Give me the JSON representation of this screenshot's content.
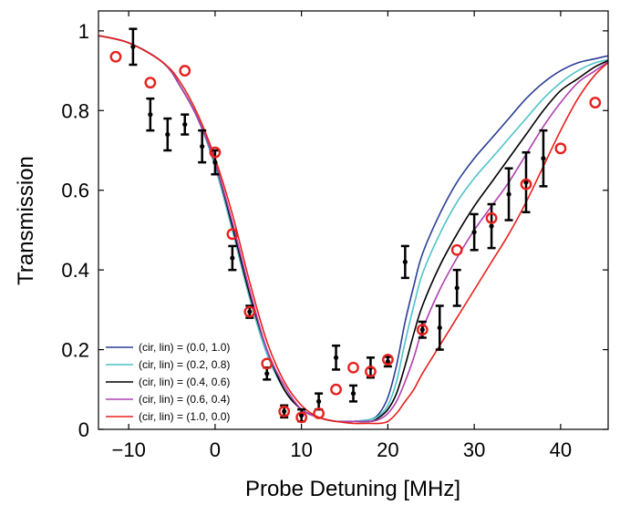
{
  "chart_data": {
    "type": "scatter",
    "title": "",
    "xlabel": "Probe Detuning [MHz]",
    "ylabel": "Transmission",
    "xlim": [
      -13.5,
      45.5
    ],
    "ylim": [
      0,
      1.05
    ],
    "xticks": [
      -10,
      0,
      10,
      20,
      30,
      40
    ],
    "xtick_labels": [
      "−10",
      "0",
      "10",
      "20",
      "30",
      "40"
    ],
    "yticks": [
      0,
      0.2,
      0.4,
      0.6,
      0.8,
      1
    ],
    "ytick_labels": [
      "0",
      "0.2",
      "0.4",
      "0.6",
      "0.8",
      "1"
    ],
    "grid": false,
    "legend_position": "bottom-left",
    "legend": [
      {
        "label": "(cir, lin) = (0.0, 1.0)",
        "color": "#2b3f94"
      },
      {
        "label": "(cir, lin) = (0.2, 0.8)",
        "color": "#4fc3c8"
      },
      {
        "label": "(cir, lin) = (0.4, 0.6)",
        "color": "#000000"
      },
      {
        "label": "(cir, lin) = (0.6, 0.4)",
        "color": "#b040b0"
      },
      {
        "label": "(cir, lin) = (1.0, 0.0)",
        "color": "#e8201c"
      }
    ],
    "series": [
      {
        "color": "#2b3f94",
        "x": [
          -14,
          -10,
          -6,
          -4,
          -2,
          0,
          2,
          4,
          6,
          8,
          10,
          12,
          14,
          16,
          18,
          19,
          20,
          21,
          22,
          23,
          24,
          26,
          28,
          30,
          32,
          34,
          36,
          38,
          40,
          42,
          44,
          46
        ],
        "y": [
          0.99,
          0.97,
          0.92,
          0.86,
          0.78,
          0.66,
          0.5,
          0.33,
          0.19,
          0.1,
          0.05,
          0.03,
          0.02,
          0.02,
          0.025,
          0.04,
          0.08,
          0.16,
          0.27,
          0.36,
          0.44,
          0.54,
          0.62,
          0.68,
          0.73,
          0.78,
          0.83,
          0.87,
          0.9,
          0.92,
          0.93,
          0.94
        ]
      },
      {
        "color": "#4fc3c8",
        "x": [
          -14,
          -10,
          -6,
          -4,
          -2,
          0,
          2,
          4,
          6,
          8,
          10,
          12,
          14,
          16,
          18,
          19,
          20,
          21,
          22,
          23,
          24,
          26,
          28,
          30,
          32,
          34,
          36,
          38,
          40,
          42,
          44,
          46
        ],
        "y": [
          0.99,
          0.97,
          0.92,
          0.86,
          0.78,
          0.66,
          0.5,
          0.33,
          0.19,
          0.1,
          0.05,
          0.03,
          0.02,
          0.02,
          0.025,
          0.035,
          0.06,
          0.12,
          0.22,
          0.31,
          0.39,
          0.49,
          0.57,
          0.63,
          0.68,
          0.73,
          0.78,
          0.83,
          0.87,
          0.9,
          0.92,
          0.93
        ]
      },
      {
        "color": "#000000",
        "x": [
          -14,
          -10,
          -6,
          -4,
          -2,
          0,
          2,
          4,
          6,
          8,
          10,
          12,
          14,
          16,
          18,
          19,
          20,
          21,
          22,
          23,
          24,
          26,
          28,
          30,
          32,
          34,
          36,
          38,
          40,
          42,
          44,
          46
        ],
        "y": [
          0.99,
          0.97,
          0.92,
          0.86,
          0.78,
          0.67,
          0.51,
          0.34,
          0.2,
          0.1,
          0.05,
          0.03,
          0.02,
          0.02,
          0.02,
          0.03,
          0.05,
          0.09,
          0.16,
          0.24,
          0.31,
          0.41,
          0.49,
          0.56,
          0.62,
          0.68,
          0.74,
          0.8,
          0.85,
          0.88,
          0.91,
          0.93
        ]
      },
      {
        "color": "#b040b0",
        "x": [
          -14,
          -10,
          -6,
          -4,
          -2,
          0,
          2,
          4,
          6,
          8,
          10,
          12,
          14,
          16,
          18,
          19,
          20,
          21,
          22,
          23,
          24,
          26,
          28,
          30,
          32,
          34,
          36,
          38,
          40,
          42,
          44,
          46
        ],
        "y": [
          0.99,
          0.97,
          0.92,
          0.86,
          0.78,
          0.67,
          0.52,
          0.35,
          0.2,
          0.11,
          0.05,
          0.03,
          0.02,
          0.02,
          0.02,
          0.025,
          0.04,
          0.07,
          0.12,
          0.18,
          0.25,
          0.35,
          0.43,
          0.5,
          0.56,
          0.62,
          0.69,
          0.76,
          0.82,
          0.87,
          0.9,
          0.93
        ]
      },
      {
        "color": "#e8201c",
        "x": [
          -14,
          -10,
          -6,
          -4,
          -2,
          0,
          2,
          4,
          6,
          8,
          10,
          12,
          14,
          16,
          18,
          19,
          20,
          21,
          22,
          23,
          24,
          26,
          28,
          30,
          32,
          34,
          36,
          38,
          40,
          42,
          44,
          46
        ],
        "y": [
          0.99,
          0.97,
          0.92,
          0.87,
          0.79,
          0.68,
          0.54,
          0.37,
          0.22,
          0.12,
          0.06,
          0.03,
          0.02,
          0.015,
          0.015,
          0.015,
          0.02,
          0.04,
          0.07,
          0.1,
          0.14,
          0.21,
          0.28,
          0.35,
          0.42,
          0.49,
          0.57,
          0.66,
          0.75,
          0.83,
          0.89,
          0.93
        ]
      },
      {
        "marker": "errorbar",
        "color": "#000000",
        "x": [
          -9.5,
          -7.5,
          -5.5,
          -3.5,
          -1.5,
          0,
          2,
          4,
          6,
          8,
          10,
          12,
          14,
          16,
          18,
          20,
          22,
          24,
          26,
          28,
          30,
          32,
          34,
          36,
          38
        ],
        "y": [
          0.96,
          0.79,
          0.74,
          0.765,
          0.71,
          0.67,
          0.43,
          0.295,
          0.14,
          0.045,
          0.035,
          0.07,
          0.18,
          0.09,
          0.155,
          0.17,
          0.42,
          0.25,
          0.255,
          0.355,
          0.495,
          0.51,
          0.59,
          0.62,
          0.68
        ],
        "err": [
          0.045,
          0.04,
          0.04,
          0.025,
          0.04,
          0.03,
          0.03,
          0.015,
          0.015,
          0.015,
          0.015,
          0.02,
          0.03,
          0.02,
          0.025,
          0.012,
          0.04,
          0.02,
          0.055,
          0.045,
          0.045,
          0.055,
          0.065,
          0.075,
          0.07
        ]
      },
      {
        "marker": "circle",
        "color": "#e8201c",
        "x": [
          -11.5,
          -7.5,
          -3.5,
          0,
          2,
          4,
          6,
          8,
          10,
          12,
          14,
          16,
          18,
          20,
          24,
          28,
          32,
          36,
          40,
          44
        ],
        "y": [
          0.935,
          0.87,
          0.9,
          0.695,
          0.49,
          0.295,
          0.165,
          0.045,
          0.03,
          0.04,
          0.1,
          0.155,
          0.145,
          0.175,
          0.25,
          0.45,
          0.53,
          0.615,
          0.705,
          0.82
        ]
      }
    ]
  }
}
